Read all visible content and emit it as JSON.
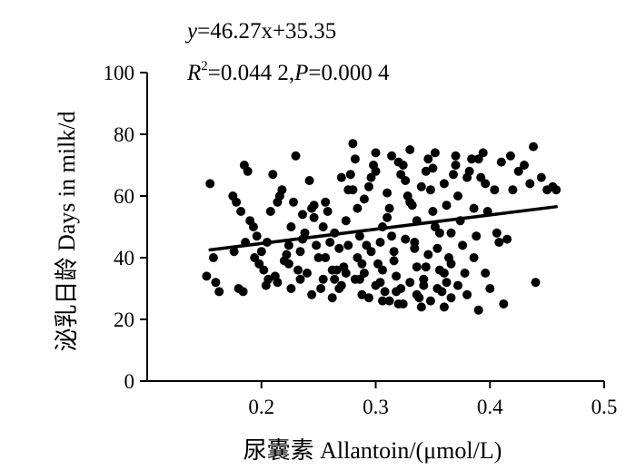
{
  "chart_data": {
    "type": "scatter",
    "xlabel": "尿囊素 Allantoin/(μmol/L)",
    "ylabel": "泌乳日龄 Days in milk/d",
    "equation_y": "y",
    "equation_rhs": "=46.27x+35.35",
    "stats_r": "R",
    "stats_r_sup": "2",
    "stats_r_val": "=0.044 2,",
    "stats_p": "P",
    "stats_p_val": "=0.000 4",
    "xlim": [
      0.1,
      0.5
    ],
    "ylim": [
      0,
      100
    ],
    "xticks": [
      "0.2",
      "0.3",
      "0.4",
      "0.5"
    ],
    "yticks": [
      "0",
      "20",
      "40",
      "60",
      "80",
      "100"
    ],
    "fit_line": {
      "slope": 46.27,
      "intercept": 35.35,
      "x_range": [
        0.155,
        0.458
      ]
    },
    "grid": false,
    "points": [
      [
        0.155,
        64
      ],
      [
        0.152,
        34
      ],
      [
        0.16,
        32
      ],
      [
        0.163,
        29
      ],
      [
        0.158,
        40
      ],
      [
        0.175,
        60
      ],
      [
        0.178,
        58
      ],
      [
        0.182,
        55
      ],
      [
        0.185,
        70
      ],
      [
        0.188,
        68
      ],
      [
        0.18,
        30
      ],
      [
        0.184,
        29
      ],
      [
        0.176,
        42
      ],
      [
        0.19,
        52
      ],
      [
        0.193,
        50
      ],
      [
        0.196,
        47
      ],
      [
        0.198,
        38
      ],
      [
        0.202,
        36
      ],
      [
        0.205,
        45
      ],
      [
        0.208,
        55
      ],
      [
        0.21,
        67
      ],
      [
        0.212,
        34
      ],
      [
        0.214,
        32
      ],
      [
        0.216,
        60
      ],
      [
        0.218,
        62
      ],
      [
        0.22,
        39
      ],
      [
        0.222,
        41
      ],
      [
        0.224,
        38
      ],
      [
        0.226,
        50
      ],
      [
        0.228,
        58
      ],
      [
        0.23,
        73
      ],
      [
        0.232,
        36
      ],
      [
        0.234,
        33
      ],
      [
        0.236,
        46
      ],
      [
        0.238,
        48
      ],
      [
        0.24,
        35
      ],
      [
        0.242,
        65
      ],
      [
        0.244,
        56
      ],
      [
        0.246,
        53
      ],
      [
        0.248,
        44
      ],
      [
        0.25,
        40
      ],
      [
        0.252,
        30
      ],
      [
        0.254,
        50
      ],
      [
        0.256,
        58
      ],
      [
        0.258,
        55
      ],
      [
        0.26,
        45
      ],
      [
        0.262,
        27
      ],
      [
        0.264,
        33
      ],
      [
        0.266,
        36
      ],
      [
        0.268,
        43
      ],
      [
        0.27,
        31
      ],
      [
        0.272,
        37
      ],
      [
        0.274,
        52
      ],
      [
        0.276,
        62
      ],
      [
        0.278,
        67
      ],
      [
        0.28,
        77
      ],
      [
        0.282,
        72
      ],
      [
        0.284,
        40
      ],
      [
        0.286,
        33
      ],
      [
        0.288,
        28
      ],
      [
        0.29,
        35
      ],
      [
        0.292,
        44
      ],
      [
        0.294,
        63
      ],
      [
        0.296,
        66
      ],
      [
        0.298,
        70
      ],
      [
        0.3,
        74
      ],
      [
        0.302,
        38
      ],
      [
        0.304,
        32
      ],
      [
        0.306,
        26
      ],
      [
        0.308,
        29
      ],
      [
        0.31,
        53
      ],
      [
        0.312,
        56
      ],
      [
        0.314,
        47
      ],
      [
        0.316,
        42
      ],
      [
        0.318,
        34
      ],
      [
        0.32,
        25
      ],
      [
        0.322,
        30
      ],
      [
        0.324,
        70
      ],
      [
        0.326,
        65
      ],
      [
        0.328,
        60
      ],
      [
        0.33,
        75
      ],
      [
        0.332,
        57
      ],
      [
        0.334,
        45
      ],
      [
        0.336,
        37
      ],
      [
        0.338,
        27
      ],
      [
        0.34,
        24
      ],
      [
        0.342,
        33
      ],
      [
        0.344,
        68
      ],
      [
        0.346,
        72
      ],
      [
        0.348,
        62
      ],
      [
        0.35,
        55
      ],
      [
        0.352,
        50
      ],
      [
        0.354,
        43
      ],
      [
        0.356,
        36
      ],
      [
        0.358,
        29
      ],
      [
        0.36,
        24
      ],
      [
        0.362,
        32
      ],
      [
        0.364,
        40
      ],
      [
        0.366,
        48
      ],
      [
        0.368,
        67
      ],
      [
        0.37,
        73
      ],
      [
        0.372,
        60
      ],
      [
        0.374,
        52
      ],
      [
        0.376,
        44
      ],
      [
        0.378,
        35
      ],
      [
        0.38,
        28
      ],
      [
        0.382,
        68
      ],
      [
        0.384,
        72
      ],
      [
        0.386,
        56
      ],
      [
        0.388,
        47
      ],
      [
        0.39,
        23
      ],
      [
        0.392,
        66
      ],
      [
        0.394,
        74
      ],
      [
        0.396,
        64
      ],
      [
        0.398,
        55
      ],
      [
        0.4,
        30
      ],
      [
        0.404,
        62
      ],
      [
        0.408,
        45
      ],
      [
        0.41,
        71
      ],
      [
        0.412,
        25
      ],
      [
        0.415,
        46
      ],
      [
        0.418,
        73
      ],
      [
        0.42,
        62
      ],
      [
        0.425,
        68
      ],
      [
        0.43,
        70
      ],
      [
        0.435,
        64
      ],
      [
        0.438,
        76
      ],
      [
        0.44,
        32
      ],
      [
        0.445,
        66
      ],
      [
        0.45,
        62
      ],
      [
        0.455,
        63
      ],
      [
        0.458,
        62
      ],
      [
        0.262,
        36
      ],
      [
        0.268,
        30
      ],
      [
        0.274,
        35
      ],
      [
        0.282,
        33
      ],
      [
        0.288,
        38
      ],
      [
        0.294,
        27
      ],
      [
        0.3,
        31
      ],
      [
        0.306,
        36
      ],
      [
        0.312,
        26
      ],
      [
        0.318,
        29
      ],
      [
        0.324,
        25
      ],
      [
        0.33,
        32
      ],
      [
        0.336,
        28
      ],
      [
        0.342,
        31
      ],
      [
        0.348,
        26
      ],
      [
        0.354,
        30
      ],
      [
        0.36,
        35
      ],
      [
        0.366,
        27
      ],
      [
        0.276,
        44
      ],
      [
        0.286,
        47
      ],
      [
        0.296,
        42
      ],
      [
        0.306,
        50
      ],
      [
        0.316,
        39
      ],
      [
        0.326,
        46
      ],
      [
        0.336,
        52
      ],
      [
        0.346,
        41
      ],
      [
        0.356,
        48
      ],
      [
        0.366,
        38
      ],
      [
        0.27,
        66
      ],
      [
        0.28,
        62
      ],
      [
        0.29,
        59
      ],
      [
        0.3,
        68
      ],
      [
        0.31,
        61
      ],
      [
        0.32,
        71
      ],
      [
        0.33,
        58
      ],
      [
        0.34,
        63
      ],
      [
        0.35,
        69
      ],
      [
        0.36,
        64
      ],
      [
        0.37,
        70
      ],
      [
        0.38,
        66
      ],
      [
        0.39,
        72
      ],
      [
        0.2,
        42
      ],
      [
        0.206,
        33
      ],
      [
        0.226,
        30
      ],
      [
        0.236,
        54
      ],
      [
        0.246,
        57
      ],
      [
        0.256,
        40
      ],
      [
        0.264,
        48
      ],
      [
        0.186,
        45
      ],
      [
        0.194,
        40
      ],
      [
        0.204,
        31
      ],
      [
        0.214,
        58
      ],
      [
        0.224,
        44
      ],
      [
        0.234,
        42
      ],
      [
        0.244,
        28
      ],
      [
        0.254,
        33
      ],
      [
        0.284,
        56
      ],
      [
        0.304,
        45
      ],
      [
        0.314,
        73
      ],
      [
        0.322,
        67
      ],
      [
        0.334,
        43
      ],
      [
        0.344,
        37
      ],
      [
        0.352,
        74
      ],
      [
        0.362,
        57
      ],
      [
        0.372,
        31
      ],
      [
        0.386,
        40
      ],
      [
        0.396,
        35
      ],
      [
        0.406,
        48
      ]
    ]
  }
}
